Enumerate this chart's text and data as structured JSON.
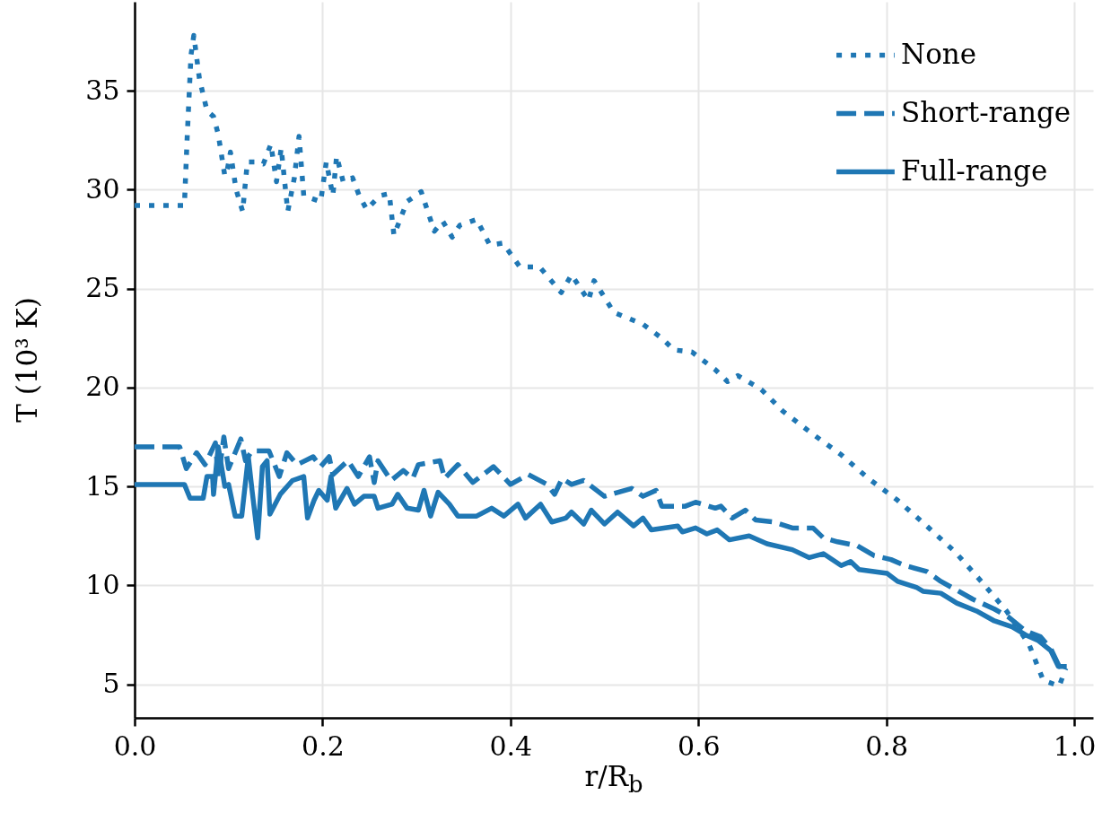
{
  "chart_data": {
    "type": "line",
    "xlabel": "r/R$_{b}$",
    "ylabel": "T (10³ K)",
    "xlim": [
      0,
      1.02
    ],
    "ylim": [
      3.3,
      39.5
    ],
    "xticks": [
      {
        "value": 0,
        "label": "0.0"
      },
      0.2,
      0.4,
      0.6,
      0.8,
      {
        "value": 1,
        "label": "1.0"
      }
    ],
    "yticks": [
      5,
      10,
      15,
      20,
      25,
      30,
      35
    ],
    "grid": true,
    "legend": "top right",
    "series": [
      {
        "name": "None",
        "color": "#1f77b4",
        "line_style": "dotted",
        "x": [
          0,
          0.053,
          0.056,
          0.06,
          0.063,
          0.069,
          0.077,
          0.084,
          0.089,
          0.096,
          0.099,
          0.102,
          0.108,
          0.115,
          0.12,
          0.129,
          0.137,
          0.145,
          0.151,
          0.156,
          0.163,
          0.17,
          0.175,
          0.18,
          0.198,
          0.204,
          0.211,
          0.215,
          0.222,
          0.232,
          0.239,
          0.247,
          0.261,
          0.271,
          0.276,
          0.29,
          0.305,
          0.319,
          0.328,
          0.338,
          0.346,
          0.364,
          0.378,
          0.392,
          0.41,
          0.431,
          0.454,
          0.465,
          0.483,
          0.489,
          0.51,
          0.541,
          0.561,
          0.574,
          0.593,
          0.618,
          0.631,
          0.642,
          0.667,
          0.69,
          0.723,
          0.752,
          0.781,
          0.812,
          0.843,
          0.873,
          0.901,
          0.928,
          0.952,
          0.967,
          0.984,
          0.991
        ],
        "values": [
          29.2,
          29.2,
          32.7,
          36.8,
          37.8,
          35.6,
          34.0,
          33.7,
          32.8,
          30.7,
          31.1,
          31.9,
          30.0,
          28.9,
          31.4,
          31.4,
          31.3,
          32.3,
          30.4,
          32.1,
          28.9,
          30.6,
          32.7,
          29.7,
          29.4,
          31.4,
          29.7,
          31.7,
          30.4,
          30.6,
          29.7,
          29.0,
          29.7,
          29.8,
          27.7,
          29.4,
          29.9,
          27.9,
          28.4,
          27.6,
          28.2,
          28.5,
          27.2,
          27.3,
          26.1,
          26.1,
          24.8,
          25.7,
          24.4,
          25.4,
          23.8,
          23.2,
          22.5,
          21.9,
          21.8,
          20.9,
          20.3,
          20.6,
          19.9,
          18.8,
          17.6,
          16.6,
          15.4,
          14.3,
          13.0,
          11.7,
          10.2,
          8.7,
          7.0,
          5.2,
          4.9,
          5.8
        ]
      },
      {
        "name": "Short-range",
        "color": "#1f77b4",
        "line_style": "dashed",
        "x": [
          0,
          0.048,
          0.055,
          0.066,
          0.075,
          0.086,
          0.089,
          0.095,
          0.1,
          0.113,
          0.118,
          0.125,
          0.143,
          0.154,
          0.162,
          0.173,
          0.19,
          0.198,
          0.207,
          0.211,
          0.227,
          0.238,
          0.25,
          0.255,
          0.259,
          0.273,
          0.286,
          0.296,
          0.302,
          0.325,
          0.33,
          0.344,
          0.36,
          0.382,
          0.4,
          0.419,
          0.439,
          0.447,
          0.455,
          0.465,
          0.478,
          0.5,
          0.529,
          0.541,
          0.555,
          0.561,
          0.586,
          0.597,
          0.618,
          0.624,
          0.636,
          0.65,
          0.661,
          0.68,
          0.7,
          0.722,
          0.733,
          0.748,
          0.769,
          0.787,
          0.805,
          0.82,
          0.843,
          0.858,
          0.877,
          0.892,
          0.915,
          0.93,
          0.948,
          0.964,
          0.975,
          0.984,
          0.992
        ],
        "values": [
          17.0,
          17.0,
          15.9,
          16.7,
          16.1,
          17.2,
          15.4,
          17.5,
          15.9,
          17.4,
          16.3,
          16.8,
          16.8,
          15.5,
          16.7,
          16.1,
          16.5,
          16.0,
          16.5,
          15.6,
          16.3,
          15.5,
          16.5,
          15.2,
          16.3,
          15.3,
          15.8,
          15.4,
          16.1,
          16.3,
          15.4,
          16.1,
          15.2,
          16.0,
          15.1,
          15.6,
          15.1,
          14.6,
          15.4,
          15.1,
          15.3,
          14.5,
          14.9,
          14.5,
          14.8,
          14.0,
          14.0,
          14.2,
          13.9,
          14.0,
          13.4,
          13.8,
          13.3,
          13.2,
          12.9,
          12.9,
          12.4,
          12.2,
          12.0,
          11.5,
          11.3,
          11.0,
          10.7,
          10.2,
          9.7,
          9.3,
          8.8,
          8.4,
          7.7,
          7.4,
          6.8,
          5.9,
          5.9
        ]
      },
      {
        "name": "Full-range",
        "color": "#1f77b4",
        "line_style": "solid",
        "x": [
          0,
          0.053,
          0.059,
          0.073,
          0.077,
          0.083,
          0.084,
          0.089,
          0.096,
          0.1,
          0.107,
          0.114,
          0.121,
          0.125,
          0.131,
          0.136,
          0.141,
          0.144,
          0.155,
          0.168,
          0.18,
          0.184,
          0.191,
          0.196,
          0.205,
          0.209,
          0.214,
          0.226,
          0.234,
          0.244,
          0.255,
          0.259,
          0.274,
          0.28,
          0.29,
          0.302,
          0.308,
          0.315,
          0.323,
          0.335,
          0.344,
          0.364,
          0.38,
          0.393,
          0.408,
          0.416,
          0.432,
          0.444,
          0.459,
          0.465,
          0.478,
          0.486,
          0.5,
          0.514,
          0.531,
          0.541,
          0.55,
          0.578,
          0.583,
          0.597,
          0.609,
          0.62,
          0.633,
          0.654,
          0.673,
          0.7,
          0.718,
          0.733,
          0.752,
          0.762,
          0.771,
          0.801,
          0.812,
          0.832,
          0.839,
          0.858,
          0.875,
          0.896,
          0.915,
          0.934,
          0.948,
          0.962,
          0.975,
          0.983,
          0.992
        ],
        "values": [
          15.1,
          15.1,
          14.4,
          14.4,
          15.5,
          15.5,
          14.6,
          17.0,
          15.0,
          15.1,
          13.5,
          13.5,
          16.5,
          14.8,
          12.4,
          16.0,
          16.3,
          13.6,
          14.6,
          15.3,
          15.5,
          13.4,
          14.3,
          14.8,
          14.3,
          15.5,
          13.9,
          14.9,
          14.1,
          14.5,
          14.5,
          13.9,
          14.1,
          14.6,
          13.9,
          13.8,
          14.8,
          13.5,
          14.7,
          14.1,
          13.5,
          13.5,
          13.9,
          13.5,
          14.1,
          13.4,
          14.1,
          13.2,
          13.4,
          13.7,
          13.1,
          13.8,
          13.1,
          13.7,
          13.0,
          13.4,
          12.8,
          13.0,
          12.7,
          12.9,
          12.6,
          12.8,
          12.3,
          12.5,
          12.1,
          11.8,
          11.4,
          11.6,
          11.0,
          11.2,
          10.8,
          10.6,
          10.2,
          9.9,
          9.7,
          9.6,
          9.1,
          8.7,
          8.2,
          7.9,
          7.5,
          7.2,
          6.7,
          5.9,
          5.9
        ]
      }
    ]
  }
}
